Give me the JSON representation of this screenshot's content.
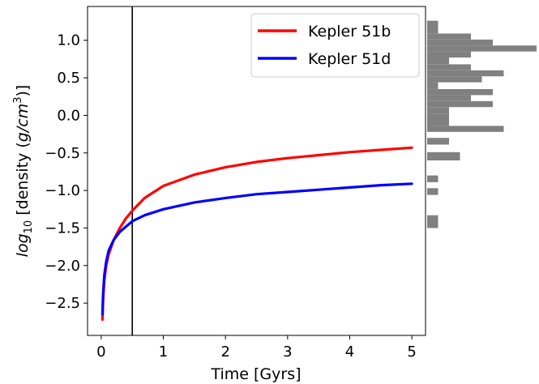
{
  "chart_data": {
    "type": "line",
    "xlabel": "Time [Gyrs]",
    "ylabel": {
      "prefix": "log",
      "subscript": "10",
      "middle": " [density (",
      "unit_base": "g/cm",
      "unit_exp": "3",
      "suffix": ")]"
    },
    "xlim": [
      -0.22,
      5.22
    ],
    "ylim": [
      -2.93,
      1.45
    ],
    "xticks": [
      0,
      1,
      2,
      3,
      4,
      5
    ],
    "xtick_labels": [
      "0",
      "1",
      "2",
      "3",
      "4",
      "5"
    ],
    "yticks": [
      -2.5,
      -2.0,
      -1.5,
      -1.0,
      -0.5,
      0.0,
      0.5,
      1.0
    ],
    "ytick_labels": [
      "−2.5",
      "−2.0",
      "−1.5",
      "−1.0",
      "−0.5",
      "0.0",
      "0.5",
      "1.0"
    ],
    "vline_x": 0.5,
    "legend_position": "top-right",
    "series": [
      {
        "name": "Kepler 51b",
        "color": "#ff0000",
        "x": [
          0.02,
          0.03,
          0.05,
          0.08,
          0.12,
          0.2,
          0.3,
          0.4,
          0.5,
          0.7,
          1.0,
          1.5,
          2.0,
          2.5,
          3.0,
          3.5,
          4.0,
          4.5,
          5.0
        ],
        "y": [
          -2.72,
          -2.45,
          -2.2,
          -2.0,
          -1.85,
          -1.66,
          -1.5,
          -1.37,
          -1.27,
          -1.1,
          -0.94,
          -0.79,
          -0.69,
          -0.62,
          -0.57,
          -0.53,
          -0.49,
          -0.46,
          -0.43
        ]
      },
      {
        "name": "Kepler 51d",
        "color": "#0000ff",
        "x": [
          0.02,
          0.03,
          0.05,
          0.08,
          0.12,
          0.2,
          0.3,
          0.4,
          0.5,
          0.7,
          1.0,
          1.5,
          2.0,
          2.5,
          3.0,
          3.5,
          4.0,
          4.5,
          5.0
        ],
        "y": [
          -2.65,
          -2.38,
          -2.13,
          -1.95,
          -1.8,
          -1.66,
          -1.55,
          -1.48,
          -1.41,
          -1.33,
          -1.25,
          -1.16,
          -1.1,
          -1.05,
          -1.02,
          -0.99,
          -0.96,
          -0.93,
          -0.91
        ]
      }
    ],
    "histogram": {
      "orientation": "horizontal",
      "color": "#808080",
      "bins": [
        {
          "y0": 1.18,
          "y1": 1.26,
          "count": 1
        },
        {
          "y0": 1.09,
          "y1": 1.18,
          "count": 1
        },
        {
          "y0": 1.01,
          "y1": 1.09,
          "count": 4
        },
        {
          "y0": 0.93,
          "y1": 1.01,
          "count": 6
        },
        {
          "y0": 0.85,
          "y1": 0.93,
          "count": 10
        },
        {
          "y0": 0.77,
          "y1": 0.85,
          "count": 4
        },
        {
          "y0": 0.68,
          "y1": 0.77,
          "count": 2
        },
        {
          "y0": 0.6,
          "y1": 0.68,
          "count": 4
        },
        {
          "y0": 0.52,
          "y1": 0.6,
          "count": 7
        },
        {
          "y0": 0.44,
          "y1": 0.52,
          "count": 5
        },
        {
          "y0": 0.35,
          "y1": 0.44,
          "count": 1
        },
        {
          "y0": 0.27,
          "y1": 0.35,
          "count": 6
        },
        {
          "y0": 0.19,
          "y1": 0.27,
          "count": 4
        },
        {
          "y0": 0.11,
          "y1": 0.19,
          "count": 6
        },
        {
          "y0": 0.02,
          "y1": 0.11,
          "count": 2
        },
        {
          "y0": -0.06,
          "y1": 0.02,
          "count": 2
        },
        {
          "y0": -0.14,
          "y1": -0.06,
          "count": 2
        },
        {
          "y0": -0.22,
          "y1": -0.14,
          "count": 7
        },
        {
          "y0": -0.39,
          "y1": -0.3,
          "count": 2
        },
        {
          "y0": -0.6,
          "y1": -0.49,
          "count": 3
        },
        {
          "y0": -0.89,
          "y1": -0.8,
          "count": 1
        },
        {
          "y0": -1.06,
          "y1": -0.97,
          "count": 1
        },
        {
          "y0": -1.5,
          "y1": -1.33,
          "count": 1
        }
      ]
    }
  }
}
